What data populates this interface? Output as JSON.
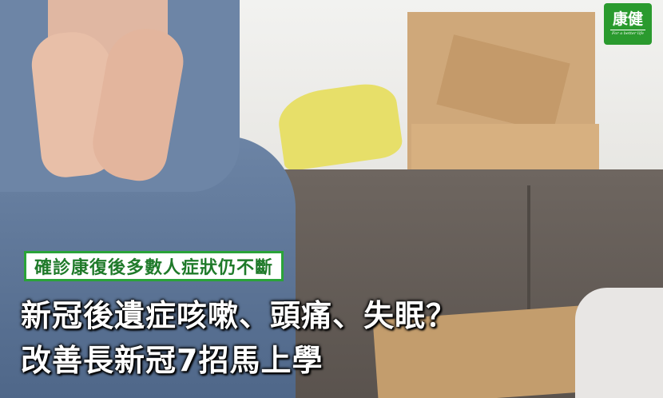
{
  "brand": {
    "logo_mark": "康健",
    "logo_tagline": "For a better life"
  },
  "article": {
    "tag": "確診康復後多數人症狀仍不斷",
    "headline_line1": "新冠後遺症咳嗽、頭痛、失眠？",
    "headline_line2": "改善長新冠7招馬上學"
  },
  "colors": {
    "accent_green": "#2aa339",
    "tag_text_green": "#1f7a2a",
    "logo_green": "#2a9a2e",
    "headline_text": "#ffffff"
  }
}
